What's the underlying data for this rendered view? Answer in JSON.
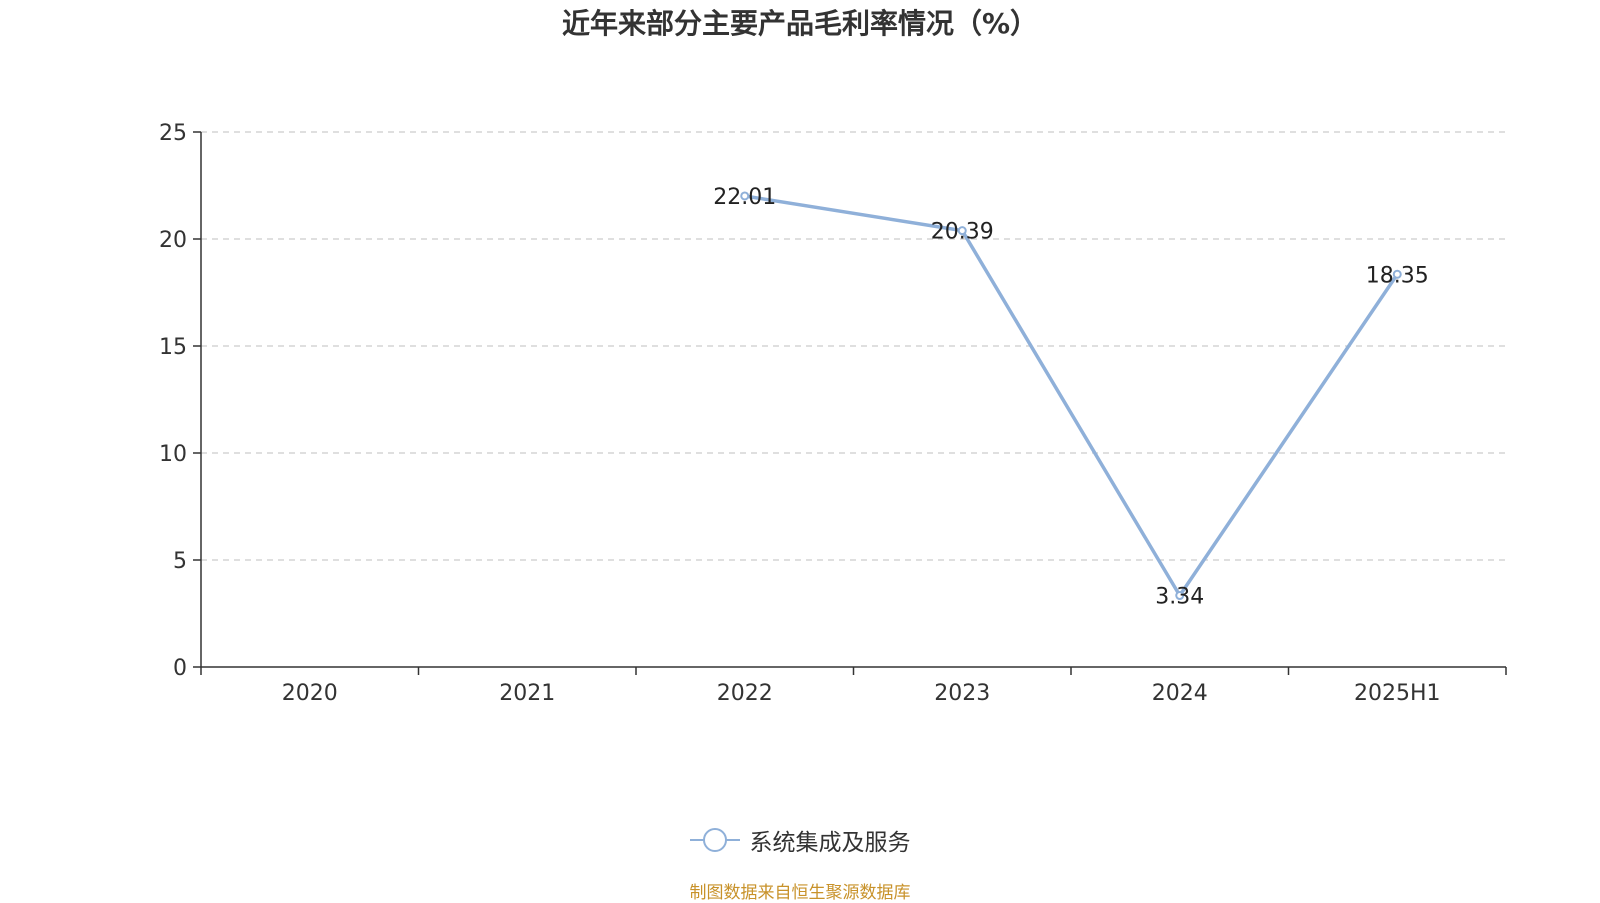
{
  "chart_data": {
    "type": "line",
    "title": "近年来部分主要产品毛利率情况（%）",
    "categories": [
      "2020",
      "2021",
      "2022",
      "2023",
      "2024",
      "2025H1"
    ],
    "series": [
      {
        "name": "系统集成及服务",
        "values": [
          null,
          null,
          22.01,
          20.39,
          3.34,
          18.35
        ],
        "labels": [
          "",
          "",
          "22.01",
          "20.39",
          "3.34",
          "18.35"
        ],
        "color": "#8fb0d9"
      }
    ],
    "ylim": [
      0,
      25
    ],
    "yticks": [
      "0",
      "5",
      "10",
      "15",
      "20",
      "25"
    ],
    "grid": true,
    "legend_position": "bottom-center"
  },
  "source": "制图数据来自恒生聚源数据库"
}
